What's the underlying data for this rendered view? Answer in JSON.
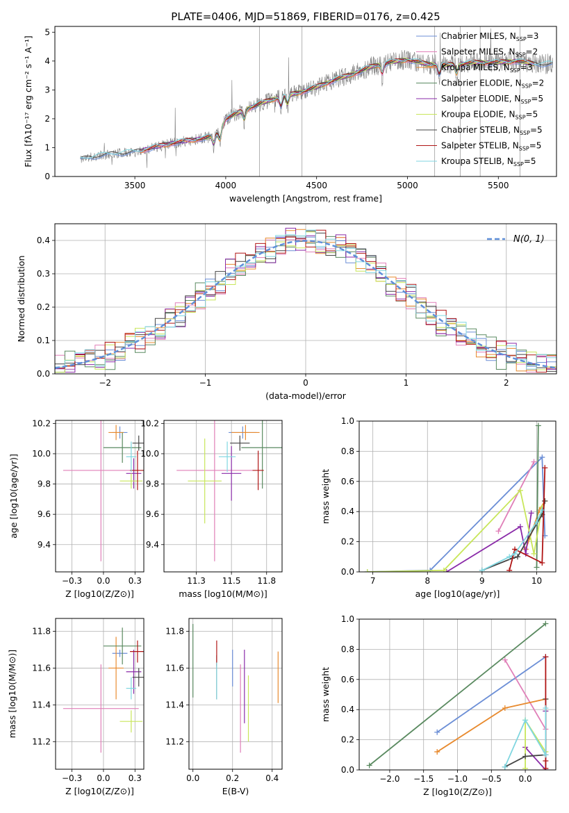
{
  "figure_title": "PLATE=0406, MJD=51869, FIBERID=0176, z=0.425",
  "colors": {
    "chabrier_miles": "#6b8ed6",
    "salpeter_miles": "#e07fb8",
    "kroupa_miles": "#e88a2e",
    "chabrier_elodie": "#5a8a60",
    "salpeter_elodie": "#8a2aa8",
    "kroupa_elodie": "#c8e65a",
    "chabrier_stelib": "#444444",
    "salpeter_stelib": "#b01515",
    "kroupa_stelib": "#7fd6e0",
    "data": "#7f7f7f",
    "normal_curve": "#5f8fd9"
  },
  "chart_data": [
    {
      "id": "spectrum",
      "type": "line",
      "title": "",
      "xlabel": "wavelength [Angstrom, rest frame]",
      "ylabel": "Flux [fλ10⁻¹⁷ erg cm⁻² s⁻¹ A⁻¹]",
      "xlim": [
        3060,
        5820
      ],
      "ylim": [
        0,
        5.2
      ],
      "xticks": [
        3500,
        4000,
        4500,
        5000,
        5500
      ],
      "yticks": [
        0,
        1,
        2,
        3,
        4,
        5
      ],
      "legend_position": "top-right",
      "legend": [
        "Chabrier MILES, N_SSP=3",
        "Salpeter MILES, N_SSP=2",
        "Kroupa MILES, N_SSP=3",
        "Chabrier ELODIE, N_SSP=2",
        "Salpeter ELODIE, N_SSP=5",
        "Kroupa ELODIE, N_SSP=5",
        "Chabrier STELIB, N_SSP=5",
        "Salpeter STELIB, N_SSP=5",
        "Kroupa STELIB, N_SSP=5"
      ],
      "continuum": {
        "x": [
          3200,
          3300,
          3400,
          3500,
          3600,
          3700,
          3800,
          3900,
          3960,
          4000,
          4100,
          4200,
          4300,
          4400,
          4500,
          4600,
          4700,
          4800,
          4900,
          5000,
          5100,
          5200,
          5300,
          5400,
          5500,
          5600,
          5700
        ],
        "y": [
          0.6,
          0.72,
          0.8,
          0.85,
          1.0,
          1.15,
          1.25,
          1.35,
          1.5,
          2.0,
          2.3,
          2.55,
          2.75,
          2.9,
          3.1,
          3.35,
          3.55,
          3.8,
          3.95,
          4.05,
          3.9,
          3.85,
          3.9,
          3.95,
          3.95,
          4.0,
          3.9
        ]
      },
      "model_ranges": [
        [
          3200,
          5800
        ],
        [
          3530,
          5700
        ],
        [
          3530,
          5700
        ],
        [
          3880,
          5700
        ],
        [
          3530,
          5700
        ],
        [
          3880,
          5700
        ],
        [
          3200,
          5800
        ],
        [
          3530,
          5700
        ],
        [
          3200,
          5800
        ]
      ]
    },
    {
      "id": "residuals",
      "type": "step",
      "xlabel": "(data-model)/error",
      "ylabel": "Normed distribution",
      "xlim": [
        -2.5,
        2.5
      ],
      "ylim": [
        0,
        0.45
      ],
      "xticks": [
        -2,
        -1,
        0,
        1,
        2
      ],
      "yticks": [
        0.0,
        0.1,
        0.2,
        0.3,
        0.4
      ],
      "grid": true,
      "legend_position": "top-right",
      "legend": [
        "N(0, 1)"
      ],
      "bins": 50,
      "series_noise": [
        0.018,
        0.022,
        0.02,
        0.026,
        0.024,
        0.02,
        0.018,
        0.022,
        0.02
      ]
    },
    {
      "id": "age_vs_Z",
      "type": "errorbar",
      "xlabel": "Z [log10(Z/Z⊙)]",
      "ylabel": "age  [log10(age/yr)]",
      "xlim": [
        -0.38,
        0.32
      ],
      "ylim": [
        9.22,
        10.22
      ],
      "xticks": [
        -0.25,
        0.0,
        0.25
      ],
      "yticks": [
        9.4,
        9.6,
        9.8,
        10.0,
        10.2
      ],
      "grid": true,
      "points": [
        {
          "x": 0.13,
          "y": 10.14,
          "xerr": 0.06,
          "yerr": 0.04
        },
        {
          "x": -0.02,
          "y": 9.89,
          "xerr": 0.3,
          "yerr": 0.6
        },
        {
          "x": 0.1,
          "y": 10.14,
          "xerr": 0.06,
          "yerr": 0.05
        },
        {
          "x": 0.15,
          "y": 10.04,
          "xerr": 0.15,
          "yerr": 0.1
        },
        {
          "x": 0.24,
          "y": 9.87,
          "xerr": 0.06,
          "yerr": 0.1
        },
        {
          "x": 0.22,
          "y": 9.82,
          "xerr": 0.09,
          "yerr": 0.05
        },
        {
          "x": 0.28,
          "y": 10.07,
          "xerr": 0.05,
          "yerr": 0.05
        },
        {
          "x": 0.27,
          "y": 9.89,
          "xerr": 0.06,
          "yerr": 0.13
        },
        {
          "x": 0.22,
          "y": 9.98,
          "xerr": 0.04,
          "yerr": 0.1
        }
      ]
    },
    {
      "id": "age_vs_mass",
      "type": "errorbar",
      "xlabel": "mass [log10(M/M⊙)]",
      "ylabel": "",
      "xlim": [
        11.02,
        11.86
      ],
      "ylim": [
        9.22,
        10.22
      ],
      "xticks": [
        11.25,
        11.5,
        11.75
      ],
      "yticks": [
        9.4,
        9.6,
        9.8,
        10.0,
        10.2
      ],
      "grid": true,
      "points": [
        {
          "x": 11.58,
          "y": 10.14,
          "xerr": 0.1,
          "yerr": 0.04
        },
        {
          "x": 11.38,
          "y": 9.89,
          "xerr": 0.27,
          "yerr": 0.6
        },
        {
          "x": 11.6,
          "y": 10.14,
          "xerr": 0.1,
          "yerr": 0.05
        },
        {
          "x": 11.72,
          "y": 10.04,
          "xerr": 0.15,
          "yerr": 0.27
        },
        {
          "x": 11.5,
          "y": 9.87,
          "xerr": 0.07,
          "yerr": 0.18
        },
        {
          "x": 11.31,
          "y": 9.82,
          "xerr": 0.12,
          "yerr": 0.28
        },
        {
          "x": 11.56,
          "y": 10.07,
          "xerr": 0.07,
          "yerr": 0.05
        },
        {
          "x": 11.69,
          "y": 9.89,
          "xerr": 0.04,
          "yerr": 0.13
        },
        {
          "x": 11.47,
          "y": 9.98,
          "xerr": 0.06,
          "yerr": 0.1
        }
      ]
    },
    {
      "id": "weight_vs_age",
      "type": "line",
      "xlabel": "age  [log10(age/yr)]",
      "ylabel": "mass weight",
      "xlim": [
        6.75,
        10.35
      ],
      "ylim": [
        0,
        1.0
      ],
      "xticks": [
        7,
        8,
        9,
        10
      ],
      "yticks": [
        0.0,
        0.2,
        0.4,
        0.6,
        0.8,
        1.0
      ],
      "grid": true,
      "series": [
        {
          "color_key": "chabrier_miles",
          "x": [
            6.9,
            8.05,
            10.1,
            10.15
          ],
          "y": [
            0.0,
            0.01,
            0.76,
            0.24
          ]
        },
        {
          "color_key": "salpeter_miles",
          "x": [
            9.3,
            9.95
          ],
          "y": [
            0.27,
            0.73
          ]
        },
        {
          "color_key": "kroupa_miles",
          "x": [
            9.8,
            10.05,
            10.15
          ],
          "y": [
            0.15,
            0.41,
            0.47
          ]
        },
        {
          "color_key": "chabrier_elodie",
          "x": [
            10.0,
            10.03
          ],
          "y": [
            0.03,
            0.97
          ]
        },
        {
          "color_key": "salpeter_elodie",
          "x": [
            8.35,
            9.7,
            9.8,
            9.9
          ],
          "y": [
            0.0,
            0.3,
            0.12,
            0.39
          ]
        },
        {
          "color_key": "kroupa_elodie",
          "x": [
            6.9,
            8.3,
            9.7,
            9.95,
            10.1
          ],
          "y": [
            0.0,
            0.01,
            0.54,
            0.12,
            0.43
          ]
        },
        {
          "color_key": "chabrier_stelib",
          "x": [
            9.0,
            9.55,
            9.65,
            10.1,
            10.15
          ],
          "y": [
            0.01,
            0.09,
            0.1,
            0.38,
            0.47
          ]
        },
        {
          "color_key": "salpeter_stelib",
          "x": [
            9.5,
            9.6,
            10.1,
            10.15
          ],
          "y": [
            0.01,
            0.15,
            0.06,
            0.69
          ]
        },
        {
          "color_key": "kroupa_stelib",
          "x": [
            9.0,
            9.5,
            9.6,
            10.0,
            10.1
          ],
          "y": [
            0.01,
            0.1,
            0.12,
            0.33,
            0.41
          ]
        }
      ]
    },
    {
      "id": "mass_vs_Z",
      "type": "errorbar",
      "xlabel": "Z [log10(Z/Z⊙)]",
      "ylabel": "mass [log10(M/M⊙)]",
      "xlim": [
        -0.38,
        0.32
      ],
      "ylim": [
        11.05,
        11.87
      ],
      "xticks": [
        -0.25,
        0.0,
        0.25
      ],
      "yticks": [
        11.2,
        11.4,
        11.6,
        11.8
      ],
      "grid": true,
      "points": [
        {
          "x": 0.13,
          "y": 11.68,
          "xerr": 0.06,
          "yerr": 0.02
        },
        {
          "x": -0.02,
          "y": 11.38,
          "xerr": 0.3,
          "yerr": 0.24
        },
        {
          "x": 0.1,
          "y": 11.6,
          "xerr": 0.06,
          "yerr": 0.17
        },
        {
          "x": 0.15,
          "y": 11.72,
          "xerr": 0.15,
          "yerr": 0.1
        },
        {
          "x": 0.24,
          "y": 11.58,
          "xerr": 0.06,
          "yerr": 0.12
        },
        {
          "x": 0.22,
          "y": 11.31,
          "xerr": 0.09,
          "yerr": 0.06
        },
        {
          "x": 0.28,
          "y": 11.55,
          "xerr": 0.05,
          "yerr": 0.05
        },
        {
          "x": 0.27,
          "y": 11.69,
          "xerr": 0.06,
          "yerr": 0.06
        },
        {
          "x": 0.22,
          "y": 11.49,
          "xerr": 0.04,
          "yerr": 0.06
        }
      ]
    },
    {
      "id": "mass_vs_EBV",
      "type": "errorbar",
      "xlabel": "E(B-V)",
      "ylabel": "",
      "xlim": [
        -0.02,
        0.45
      ],
      "ylim": [
        11.05,
        11.87
      ],
      "xticks": [
        0.0,
        0.2,
        0.4
      ],
      "yticks": [
        11.2,
        11.4,
        11.6,
        11.8
      ],
      "grid": true,
      "points": [
        {
          "x": 0.2,
          "y": 11.6,
          "xerr": 0.0,
          "yerr": 0.1
        },
        {
          "x": 0.24,
          "y": 11.38,
          "xerr": 0.0,
          "yerr": 0.24
        },
        {
          "x": 0.43,
          "y": 11.55,
          "xerr": 0.0,
          "yerr": 0.14
        },
        {
          "x": 0.0,
          "y": 11.64,
          "xerr": 0.0,
          "yerr": 0.2
        },
        {
          "x": 0.26,
          "y": 11.5,
          "xerr": 0.0,
          "yerr": 0.2
        },
        {
          "x": 0.28,
          "y": 11.38,
          "xerr": 0.0,
          "yerr": 0.18
        },
        {
          "x": 0.12,
          "y": 11.55,
          "xerr": 0.0,
          "yerr": 0.12
        },
        {
          "x": 0.12,
          "y": 11.68,
          "xerr": 0.0,
          "yerr": 0.07
        },
        {
          "x": 0.12,
          "y": 11.53,
          "xerr": 0.0,
          "yerr": 0.1
        }
      ]
    },
    {
      "id": "weight_vs_Z",
      "type": "line",
      "xlabel": "Z [log10(Z/Z⊙)]",
      "ylabel": "mass weight",
      "xlim": [
        -2.45,
        0.45
      ],
      "ylim": [
        0,
        1.0
      ],
      "xticks": [
        -2.0,
        -1.5,
        -1.0,
        -0.5,
        0.0
      ],
      "yticks": [
        0.0,
        0.2,
        0.4,
        0.6,
        0.8,
        1.0
      ],
      "grid": true,
      "series": [
        {
          "color_key": "chabrier_miles",
          "x": [
            -1.3,
            0.3
          ],
          "y": [
            0.25,
            0.75
          ]
        },
        {
          "color_key": "salpeter_miles",
          "x": [
            -0.3,
            0.3
          ],
          "y": [
            0.73,
            0.27
          ]
        },
        {
          "color_key": "kroupa_miles",
          "x": [
            -1.3,
            -0.3,
            0.3
          ],
          "y": [
            0.12,
            0.41,
            0.47
          ]
        },
        {
          "color_key": "chabrier_elodie",
          "x": [
            -2.3,
            0.3
          ],
          "y": [
            0.03,
            0.97
          ]
        },
        {
          "color_key": "salpeter_elodie",
          "x": [
            0.0,
            0.3,
            0.3
          ],
          "y": [
            0.15,
            0.0,
            0.39
          ]
        },
        {
          "color_key": "kroupa_elodie",
          "x": [
            0.0,
            0.0,
            0.3
          ],
          "y": [
            0.01,
            0.33,
            0.12
          ]
        },
        {
          "color_key": "chabrier_stelib",
          "x": [
            -0.3,
            0.0,
            0.3,
            0.3
          ],
          "y": [
            0.02,
            0.09,
            0.1,
            0.47
          ]
        },
        {
          "color_key": "salpeter_stelib",
          "x": [
            0.3,
            0.3,
            0.3
          ],
          "y": [
            0.01,
            0.75,
            0.06
          ]
        },
        {
          "color_key": "kroupa_stelib",
          "x": [
            -0.3,
            0.0,
            0.3,
            0.3
          ],
          "y": [
            0.02,
            0.33,
            0.1,
            0.41
          ]
        }
      ]
    }
  ]
}
